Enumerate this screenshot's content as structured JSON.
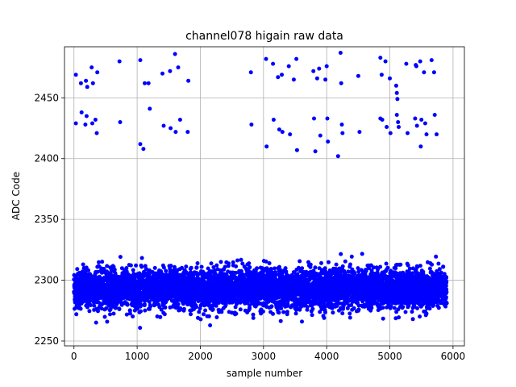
{
  "chart_data": {
    "type": "scatter",
    "title": "channel078 higain raw data",
    "xlabel": "sample number",
    "ylabel": "ADC Code",
    "xlim": [
      -150,
      6180
    ],
    "ylim": [
      2246,
      2492
    ],
    "xticks": [
      0,
      1000,
      2000,
      3000,
      4000,
      5000,
      6000
    ],
    "yticks": [
      2250,
      2300,
      2350,
      2400,
      2450
    ],
    "grid": true,
    "marker_color": "#0000ff",
    "dense_band": {
      "x_range": [
        0,
        5900
      ],
      "y_center": 2293,
      "y_spread_core": 8,
      "y_min": 2260,
      "y_max": 2323,
      "count": 5900
    },
    "series": [
      {
        "name": "",
        "points": [
          [
            30,
            2469
          ],
          [
            30,
            2429
          ],
          [
            110,
            2462
          ],
          [
            120,
            2438
          ],
          [
            180,
            2428
          ],
          [
            190,
            2464
          ],
          [
            200,
            2435
          ],
          [
            210,
            2459
          ],
          [
            280,
            2475
          ],
          [
            290,
            2429
          ],
          [
            300,
            2462
          ],
          [
            340,
            2432
          ],
          [
            360,
            2421
          ],
          [
            370,
            2471
          ],
          [
            720,
            2480
          ],
          [
            730,
            2430
          ],
          [
            1050,
            2481
          ],
          [
            1050,
            2412
          ],
          [
            1100,
            2408
          ],
          [
            1120,
            2462
          ],
          [
            1180,
            2462
          ],
          [
            1200,
            2441
          ],
          [
            1400,
            2470
          ],
          [
            1420,
            2427
          ],
          [
            1520,
            2472
          ],
          [
            1530,
            2425
          ],
          [
            1600,
            2486
          ],
          [
            1610,
            2422
          ],
          [
            1650,
            2475
          ],
          [
            1680,
            2432
          ],
          [
            1800,
            2422
          ],
          [
            1810,
            2464
          ],
          [
            2800,
            2471
          ],
          [
            2810,
            2428
          ],
          [
            3040,
            2482
          ],
          [
            3050,
            2410
          ],
          [
            3150,
            2478
          ],
          [
            3160,
            2432
          ],
          [
            3230,
            2467
          ],
          [
            3250,
            2424
          ],
          [
            3290,
            2469
          ],
          [
            3300,
            2422
          ],
          [
            3400,
            2476
          ],
          [
            3420,
            2420
          ],
          [
            3480,
            2465
          ],
          [
            3520,
            2482
          ],
          [
            3530,
            2407
          ],
          [
            3790,
            2472
          ],
          [
            3800,
            2433
          ],
          [
            3820,
            2406
          ],
          [
            3850,
            2466
          ],
          [
            3880,
            2474
          ],
          [
            3900,
            2419
          ],
          [
            3980,
            2465
          ],
          [
            4000,
            2476
          ],
          [
            4010,
            2433
          ],
          [
            4020,
            2414
          ],
          [
            4180,
            2402
          ],
          [
            4220,
            2487
          ],
          [
            4230,
            2462
          ],
          [
            4240,
            2428
          ],
          [
            4250,
            2421
          ],
          [
            4500,
            2468
          ],
          [
            4520,
            2422
          ],
          [
            4850,
            2483
          ],
          [
            4850,
            2433
          ],
          [
            4870,
            2469
          ],
          [
            4880,
            2432
          ],
          [
            4930,
            2480
          ],
          [
            4950,
            2426
          ],
          [
            5000,
            2466
          ],
          [
            5010,
            2421
          ],
          [
            5100,
            2460
          ],
          [
            5110,
            2454
          ],
          [
            5120,
            2449
          ],
          [
            5110,
            2436
          ],
          [
            5130,
            2430
          ],
          [
            5140,
            2426
          ],
          [
            5260,
            2478
          ],
          [
            5280,
            2421
          ],
          [
            5400,
            2433
          ],
          [
            5410,
            2477
          ],
          [
            5420,
            2476
          ],
          [
            5430,
            2427
          ],
          [
            5480,
            2480
          ],
          [
            5490,
            2410
          ],
          [
            5500,
            2432
          ],
          [
            5540,
            2471
          ],
          [
            5560,
            2429
          ],
          [
            5580,
            2420
          ],
          [
            5660,
            2481
          ],
          [
            5700,
            2471
          ],
          [
            5710,
            2436
          ],
          [
            5740,
            2420
          ]
        ]
      }
    ]
  }
}
